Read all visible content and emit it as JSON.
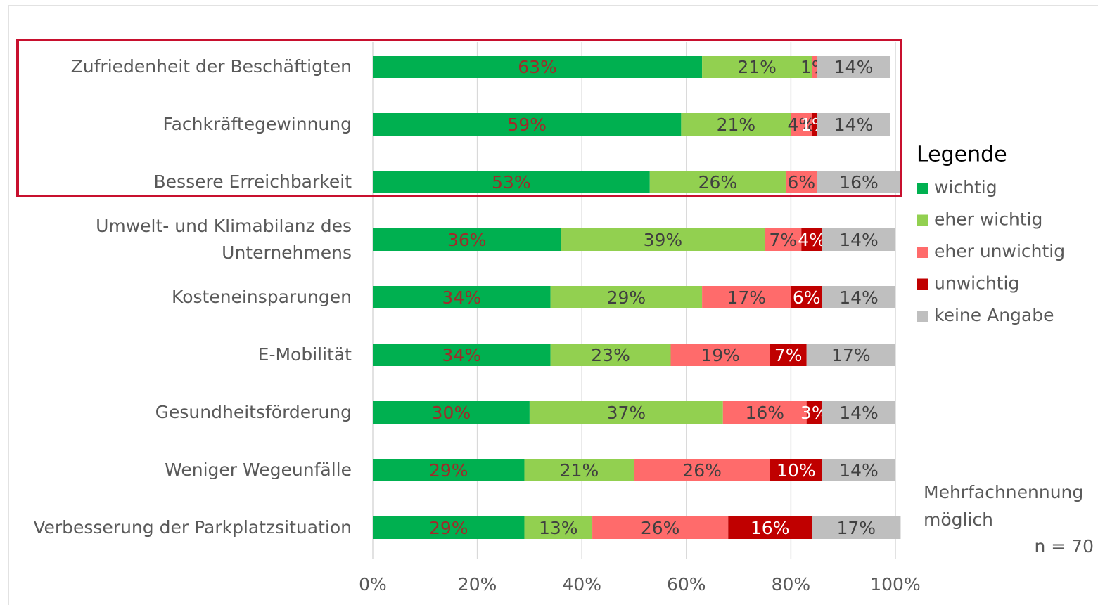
{
  "chart_data": {
    "type": "stacked_bar_horizontal",
    "categories": [
      "Zufriedenheit der Beschäftigten",
      "Fachkräftegewinnung",
      "Bessere Erreichbarkeit",
      "Umwelt- und Klimabilanz des Unternehmens",
      "Kosteneinsparungen",
      "E-Mobilität",
      "Gesundheitsförderung",
      "Weniger Wegeunfälle",
      "Verbesserung der Parkplatzsituation"
    ],
    "series": [
      {
        "name": "wichtig",
        "color": "#00b050",
        "label_color": "#a02a2a",
        "values": [
          63,
          59,
          53,
          36,
          34,
          34,
          30,
          29,
          29
        ],
        "value_labels": [
          "63%",
          "59%",
          "53%",
          "36%",
          "34%",
          "34%",
          "30%",
          "29%",
          "29%"
        ]
      },
      {
        "name": "eher wichtig",
        "color": "#92d050",
        "label_color": "#404040",
        "values": [
          21,
          21,
          26,
          39,
          29,
          23,
          37,
          21,
          13
        ],
        "value_labels": [
          "21%",
          "21%",
          "26%",
          "39%",
          "29%",
          "23%",
          "37%",
          "21%",
          "13%"
        ]
      },
      {
        "name": "eher unwichtig",
        "color": "#ff6b6b",
        "label_color": "#404040",
        "values": [
          1,
          4,
          6,
          7,
          17,
          19,
          16,
          26,
          26
        ],
        "value_labels": [
          "1%",
          "4%",
          "6%",
          "7%",
          "17%",
          "19%",
          "16%",
          "26%",
          "26%"
        ]
      },
      {
        "name": "unwichtig",
        "color": "#c00000",
        "label_color": "#ffffff",
        "values": [
          null,
          1,
          null,
          4,
          6,
          7,
          3,
          10,
          16
        ],
        "value_labels": [
          null,
          "1%",
          null,
          "4%",
          "6%",
          "7%",
          "3%",
          "10%",
          "16%"
        ]
      },
      {
        "name": "keine Angabe",
        "color": "#bfbfbf",
        "label_color": "#404040",
        "values": [
          14,
          14,
          16,
          14,
          14,
          17,
          14,
          14,
          17
        ],
        "value_labels": [
          "14%",
          "14%",
          "16%",
          "14%",
          "14%",
          "17%",
          "14%",
          "14%",
          "17%"
        ]
      }
    ],
    "xlim": [
      0,
      100
    ],
    "xticks": [
      {
        "value": 0,
        "label": "0%"
      },
      {
        "value": 20,
        "label": "20%"
      },
      {
        "value": 40,
        "label": "40%"
      },
      {
        "value": 60,
        "label": "60%"
      },
      {
        "value": 80,
        "label": "80%"
      },
      {
        "value": 100,
        "label": "100%"
      }
    ],
    "grid": true,
    "legend_title": "Legende",
    "legend": "right",
    "annotations": [
      "Mehrfachnennung möglich",
      "n = 70"
    ]
  }
}
